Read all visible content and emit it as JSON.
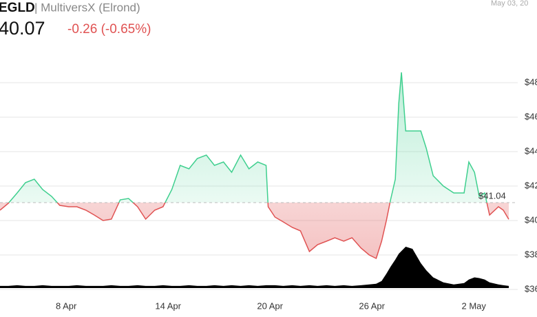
{
  "header": {
    "ticker": "EGLD",
    "name": "| MultiversX (Elrond)",
    "price": 40.07,
    "change": "-0.26 (-0.65%)",
    "date": "May 03, 20"
  },
  "chart_data": {
    "type": "line",
    "x": [
      4.1,
      4.59,
      5.11,
      5.6,
      6.12,
      6.61,
      7.14,
      7.62,
      8.15,
      8.63,
      9.16,
      9.65,
      10.17,
      10.66,
      11.18,
      11.67,
      12.2,
      12.68,
      13.21,
      13.7,
      14.22,
      14.71,
      15.23,
      15.72,
      16.25,
      16.73,
      17.26,
      17.74,
      18.27,
      18.76,
      19.28,
      19.77,
      19.89,
      20.29,
      20.78,
      21.31,
      21.79,
      22.32,
      22.8,
      23.33,
      23.82,
      24.34,
      24.83,
      25.36,
      25.84,
      26.25,
      26.57,
      26.85,
      27.1,
      27.38,
      27.58,
      27.74,
      27.99,
      28.39,
      28.88,
      29.2,
      29.61,
      30.21,
      30.82,
      31.43,
      31.71,
      32.04,
      32.32,
      32.64,
      32.93,
      33.45,
      33.74,
      34.06
    ],
    "series": [
      {
        "name": "Price",
        "color_up": "#3ecf8e",
        "color_down": "#e05252",
        "values": [
          40.6,
          41.0,
          41.6,
          42.2,
          42.4,
          41.8,
          41.4,
          40.88,
          40.8,
          40.8,
          40.6,
          40.32,
          40.0,
          40.08,
          41.2,
          41.28,
          40.8,
          40.08,
          40.6,
          40.8,
          41.8,
          43.2,
          43.0,
          43.6,
          43.8,
          43.2,
          43.4,
          42.8,
          43.8,
          43.0,
          43.4,
          43.2,
          40.8,
          40.2,
          39.92,
          39.6,
          39.4,
          38.2,
          38.6,
          38.8,
          39.0,
          38.8,
          39.0,
          38.4,
          38.0,
          37.8,
          38.8,
          40.0,
          41.2,
          42.4,
          46.8,
          48.6,
          45.2,
          45.2,
          45.2,
          44.2,
          42.6,
          42.0,
          41.6,
          41.6,
          43.4,
          42.8,
          41.4,
          41.6,
          40.32,
          40.8,
          40.6,
          40.07
        ]
      },
      {
        "name": "Volume",
        "color": "#000000",
        "values": [
          3,
          3,
          4,
          3,
          3,
          4,
          3,
          3,
          3,
          4,
          3,
          3,
          3,
          4,
          3,
          3,
          4,
          3,
          3,
          4,
          3,
          3,
          4,
          3,
          3,
          4,
          3,
          4,
          3,
          4,
          3,
          4,
          4,
          4,
          3,
          4,
          3,
          4,
          3,
          4,
          3,
          4,
          3,
          4,
          5,
          6,
          10,
          20,
          30,
          40,
          48,
          52,
          58,
          55,
          35,
          25,
          15,
          8,
          5,
          7,
          12,
          15,
          14,
          12,
          8,
          5,
          4,
          3
        ]
      }
    ],
    "reference_line": {
      "value": 41.04,
      "label": "$41.04"
    },
    "xlim": [
      4.1,
      34.1
    ],
    "xticks": [
      {
        "value": 8,
        "label": "8 Apr"
      },
      {
        "value": 14,
        "label": "14 Apr"
      },
      {
        "value": 20,
        "label": "20 Apr"
      },
      {
        "value": 26,
        "label": "26 Apr"
      },
      {
        "value": 32,
        "label": "2 May"
      }
    ],
    "ylim": [
      36,
      50
    ],
    "yticks": [
      {
        "value": 36,
        "label": "$36"
      },
      {
        "value": 38,
        "label": "$38"
      },
      {
        "value": 40,
        "label": "$40"
      },
      {
        "value": 42,
        "label": "$42"
      },
      {
        "value": 44,
        "label": "$44"
      },
      {
        "value": 46,
        "label": "$46"
      },
      {
        "value": 48,
        "label": "$48"
      }
    ],
    "grid": true
  }
}
